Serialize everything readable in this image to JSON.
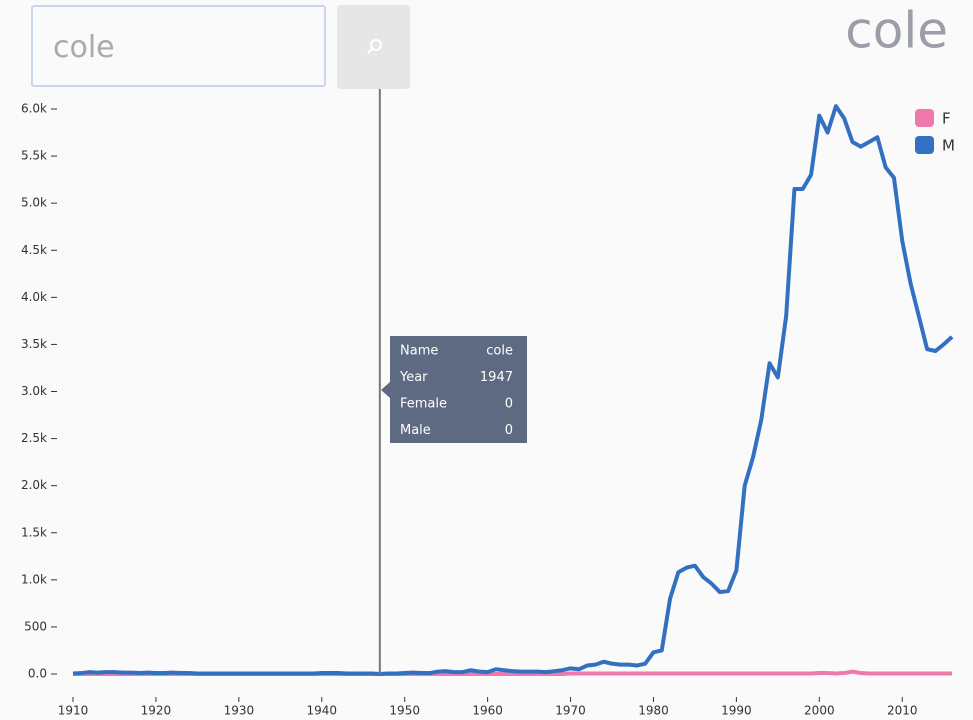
{
  "search": {
    "query": "cole"
  },
  "chart_data": {
    "type": "line",
    "title": "cole",
    "x": [
      1910,
      1911,
      1912,
      1913,
      1914,
      1915,
      1916,
      1917,
      1918,
      1919,
      1920,
      1921,
      1922,
      1923,
      1924,
      1925,
      1926,
      1927,
      1928,
      1929,
      1930,
      1931,
      1932,
      1933,
      1934,
      1935,
      1936,
      1937,
      1938,
      1939,
      1940,
      1941,
      1942,
      1943,
      1944,
      1945,
      1946,
      1947,
      1948,
      1949,
      1950,
      1951,
      1952,
      1953,
      1954,
      1955,
      1956,
      1957,
      1958,
      1959,
      1960,
      1961,
      1962,
      1963,
      1964,
      1965,
      1966,
      1967,
      1968,
      1969,
      1970,
      1971,
      1972,
      1973,
      1974,
      1975,
      1976,
      1977,
      1978,
      1979,
      1980,
      1981,
      1982,
      1983,
      1984,
      1985,
      1986,
      1987,
      1988,
      1989,
      1990,
      1991,
      1992,
      1993,
      1994,
      1995,
      1996,
      1997,
      1998,
      1999,
      2000,
      2001,
      2002,
      2003,
      2004,
      2005,
      2006,
      2007,
      2008,
      2009,
      2010,
      2011,
      2012,
      2013,
      2014,
      2015,
      2016
    ],
    "series": [
      {
        "name": "F",
        "color": "#ef79ad",
        "values": [
          0,
          0,
          0,
          0,
          0,
          0,
          0,
          0,
          0,
          0,
          0,
          0,
          0,
          0,
          0,
          0,
          0,
          0,
          0,
          0,
          0,
          0,
          0,
          0,
          0,
          0,
          0,
          0,
          0,
          0,
          0,
          0,
          0,
          0,
          0,
          0,
          0,
          0,
          0,
          0,
          0,
          0,
          0,
          0,
          0,
          0,
          0,
          0,
          0,
          0,
          0,
          0,
          0,
          0,
          0,
          0,
          0,
          0,
          0,
          0,
          5,
          5,
          5,
          5,
          5,
          5,
          5,
          5,
          5,
          5,
          5,
          5,
          5,
          5,
          5,
          5,
          5,
          5,
          5,
          5,
          5,
          5,
          5,
          5,
          5,
          5,
          5,
          5,
          5,
          5,
          10,
          10,
          5,
          10,
          25,
          10,
          5,
          5,
          5,
          5,
          5,
          5,
          5,
          5,
          5,
          5,
          5
        ]
      },
      {
        "name": "M",
        "color": "#3470c2",
        "values": [
          5,
          10,
          20,
          15,
          20,
          20,
          15,
          15,
          10,
          15,
          10,
          10,
          15,
          10,
          10,
          5,
          5,
          5,
          5,
          5,
          5,
          5,
          5,
          5,
          5,
          5,
          5,
          5,
          5,
          5,
          10,
          10,
          10,
          5,
          5,
          5,
          5,
          0,
          5,
          5,
          10,
          15,
          10,
          10,
          25,
          30,
          20,
          20,
          40,
          25,
          20,
          50,
          40,
          30,
          25,
          25,
          25,
          20,
          30,
          40,
          60,
          50,
          90,
          100,
          130,
          110,
          100,
          100,
          90,
          110,
          230,
          250,
          800,
          1080,
          1130,
          1150,
          1030,
          960,
          870,
          880,
          1100,
          2000,
          2300,
          2700,
          3300,
          3150,
          3800,
          5150,
          5150,
          5300,
          5930,
          5750,
          6030,
          5900,
          5650,
          5600,
          5650,
          5700,
          5380,
          5270,
          4600,
          4150,
          3800,
          3450,
          3430,
          3500,
          3580
        ]
      }
    ],
    "xlim": [
      1910,
      2016
    ],
    "xticks": [
      1910,
      1920,
      1930,
      1940,
      1950,
      1960,
      1970,
      1980,
      1990,
      2000,
      2010
    ],
    "ylim": [
      0,
      6000
    ],
    "yticks": [
      {
        "value": 0,
        "label": "0.0"
      },
      500,
      {
        "value": 1000,
        "label": "1.0k"
      },
      {
        "value": 1500,
        "label": "1.5k"
      },
      {
        "value": 2000,
        "label": "2.0k"
      },
      {
        "value": 2500,
        "label": "2.5k"
      },
      {
        "value": 3000,
        "label": "3.0k"
      },
      {
        "value": 3500,
        "label": "3.5k"
      },
      {
        "value": 4000,
        "label": "4.0k"
      },
      {
        "value": 4500,
        "label": "4.5k"
      },
      {
        "value": 5000,
        "label": "5.0k"
      },
      {
        "value": 5500,
        "label": "5.5k"
      },
      {
        "value": 6000,
        "label": "6.0k"
      }
    ],
    "legend": "top-right"
  },
  "tooltip": {
    "rows": [
      {
        "label": "Name",
        "value": "cole"
      },
      {
        "label": "Year",
        "value": 1947
      },
      {
        "label": "Female",
        "value": 0
      },
      {
        "label": "Male",
        "value": 0
      }
    ]
  }
}
